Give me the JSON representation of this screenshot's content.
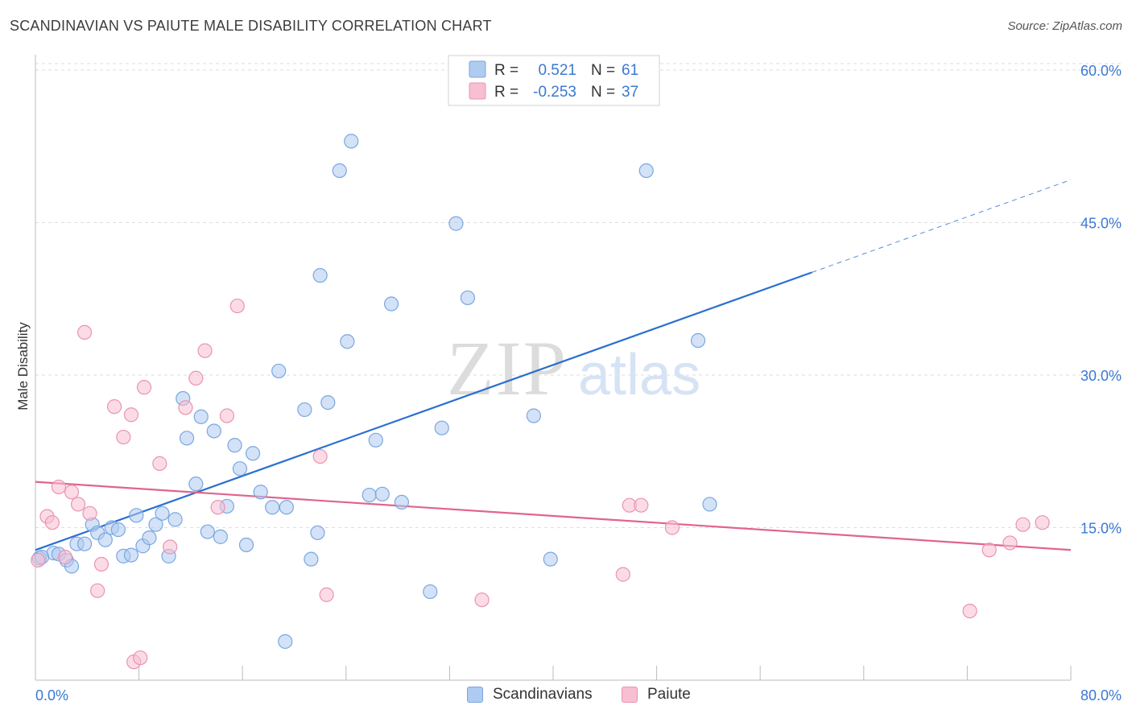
{
  "header": {
    "title": "SCANDINAVIAN VS PAIUTE MALE DISABILITY CORRELATION CHART",
    "source": "Source: ZipAtlas.com"
  },
  "watermark": {
    "zip": "ZIP",
    "atlas": "atlas"
  },
  "colors": {
    "blue_fill": "#aecbf1",
    "blue_stroke": "#7aa7e0",
    "blue_line": "#2a6fd1",
    "pink_fill": "#f7bfd1",
    "pink_stroke": "#ea93b1",
    "pink_line": "#e0648f",
    "tick_label": "#3a78d4"
  },
  "legend_top": {
    "rows": [
      {
        "r_label": "R =",
        "r_value": "0.521",
        "n_label": "N =",
        "n_value": "61"
      },
      {
        "r_label": "R =",
        "r_value": "-0.253",
        "n_label": "N =",
        "n_value": "37"
      }
    ]
  },
  "legend_bottom": {
    "items": [
      {
        "label": "Scandinavians"
      },
      {
        "label": "Paiute"
      }
    ]
  },
  "chart_data": {
    "type": "scatter",
    "title": "SCANDINAVIAN VS PAIUTE MALE DISABILITY CORRELATION CHART",
    "xlabel": "",
    "ylabel": "Male Disability",
    "xlim": [
      0,
      80
    ],
    "ylim": [
      0,
      61.5
    ],
    "x_tick_labels": [
      "0.0%",
      "80.0%"
    ],
    "y_ticks": [
      15,
      30,
      45,
      60
    ],
    "y_tick_labels": [
      "15.0%",
      "30.0%",
      "45.0%",
      "60.0%"
    ],
    "grid": "horizontal dashed",
    "legend_placement": "top-center and bottom",
    "series": [
      {
        "name": "Scandinavians",
        "r": 0.521,
        "n": 61,
        "trend": {
          "x": [
            0,
            60
          ],
          "y": [
            12.8,
            40.1
          ],
          "extended_to": [
            80,
            49.2
          ]
        },
        "points": [
          [
            0.3,
            12.0
          ],
          [
            1.4,
            12.5
          ],
          [
            1.8,
            12.4
          ],
          [
            2.4,
            11.8
          ],
          [
            2.8,
            11.2
          ],
          [
            3.2,
            13.4
          ],
          [
            3.8,
            13.4
          ],
          [
            4.4,
            15.3
          ],
          [
            4.8,
            14.5
          ],
          [
            5.4,
            13.8
          ],
          [
            5.9,
            15.0
          ],
          [
            6.4,
            14.8
          ],
          [
            6.8,
            12.2
          ],
          [
            7.4,
            12.3
          ],
          [
            7.8,
            16.2
          ],
          [
            8.3,
            13.2
          ],
          [
            8.8,
            14.0
          ],
          [
            9.3,
            15.3
          ],
          [
            9.8,
            16.4
          ],
          [
            10.3,
            12.2
          ],
          [
            10.8,
            15.8
          ],
          [
            11.4,
            27.7
          ],
          [
            11.7,
            23.8
          ],
          [
            12.4,
            19.3
          ],
          [
            12.8,
            25.9
          ],
          [
            13.3,
            14.6
          ],
          [
            13.8,
            24.5
          ],
          [
            14.3,
            14.1
          ],
          [
            14.8,
            17.1
          ],
          [
            15.4,
            23.1
          ],
          [
            15.8,
            20.8
          ],
          [
            16.3,
            13.3
          ],
          [
            16.8,
            22.3
          ],
          [
            17.4,
            18.5
          ],
          [
            18.3,
            17.0
          ],
          [
            18.8,
            30.4
          ],
          [
            19.4,
            17.0
          ],
          [
            19.3,
            3.8
          ],
          [
            20.8,
            26.6
          ],
          [
            21.3,
            11.9
          ],
          [
            21.8,
            14.5
          ],
          [
            22.0,
            39.8
          ],
          [
            22.6,
            27.3
          ],
          [
            23.5,
            50.1
          ],
          [
            24.1,
            33.3
          ],
          [
            24.4,
            53.0
          ],
          [
            25.8,
            18.2
          ],
          [
            26.3,
            23.6
          ],
          [
            26.8,
            18.3
          ],
          [
            27.5,
            37.0
          ],
          [
            28.3,
            17.5
          ],
          [
            30.5,
            8.7
          ],
          [
            31.4,
            24.8
          ],
          [
            32.5,
            44.9
          ],
          [
            33.4,
            37.6
          ],
          [
            38.5,
            26.0
          ],
          [
            39.8,
            11.9
          ],
          [
            47.2,
            50.1
          ],
          [
            51.2,
            33.4
          ],
          [
            52.1,
            17.3
          ],
          [
            0.5,
            12.1
          ]
        ]
      },
      {
        "name": "Paiute",
        "r": -0.253,
        "n": 37,
        "trend": {
          "x": [
            0,
            80
          ],
          "y": [
            19.5,
            12.8
          ]
        },
        "points": [
          [
            0.2,
            11.8
          ],
          [
            0.9,
            16.1
          ],
          [
            1.3,
            15.5
          ],
          [
            1.8,
            19.0
          ],
          [
            2.3,
            12.1
          ],
          [
            2.8,
            18.5
          ],
          [
            3.3,
            17.3
          ],
          [
            3.8,
            34.2
          ],
          [
            4.2,
            16.4
          ],
          [
            4.8,
            8.8
          ],
          [
            5.1,
            11.4
          ],
          [
            6.1,
            26.9
          ],
          [
            6.8,
            23.9
          ],
          [
            7.4,
            26.1
          ],
          [
            7.6,
            1.8
          ],
          [
            8.1,
            2.2
          ],
          [
            8.4,
            28.8
          ],
          [
            9.6,
            21.3
          ],
          [
            10.4,
            13.1
          ],
          [
            11.6,
            26.8
          ],
          [
            12.4,
            29.7
          ],
          [
            13.1,
            32.4
          ],
          [
            14.1,
            17.0
          ],
          [
            14.8,
            26.0
          ],
          [
            15.6,
            36.8
          ],
          [
            22.0,
            22.0
          ],
          [
            22.5,
            8.4
          ],
          [
            34.5,
            7.9
          ],
          [
            45.4,
            10.4
          ],
          [
            45.9,
            17.2
          ],
          [
            46.8,
            17.2
          ],
          [
            49.2,
            15.0
          ],
          [
            72.2,
            6.8
          ],
          [
            73.7,
            12.8
          ],
          [
            75.3,
            13.5
          ],
          [
            76.3,
            15.3
          ],
          [
            77.8,
            15.5
          ]
        ]
      }
    ]
  }
}
